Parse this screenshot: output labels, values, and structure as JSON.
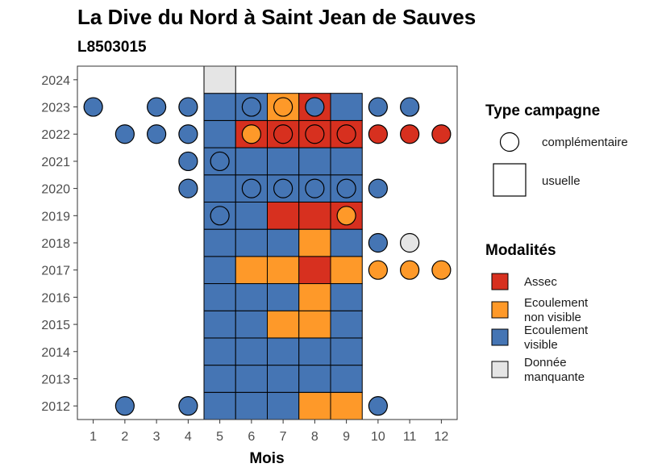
{
  "chart_data": {
    "type": "heatmap",
    "title": "La Dive du Nord à Saint Jean de Sauves",
    "subtitle": "L8503015",
    "xlabel": "Mois",
    "ylabel": "",
    "x_ticks": [
      "1",
      "2",
      "3",
      "4",
      "5",
      "6",
      "7",
      "8",
      "9",
      "10",
      "11",
      "12"
    ],
    "y_ticks": [
      "2012",
      "2013",
      "2014",
      "2015",
      "2016",
      "2017",
      "2018",
      "2019",
      "2020",
      "2021",
      "2022",
      "2023",
      "2024"
    ],
    "xlim": [
      0.5,
      12.5
    ],
    "ylim": [
      2011.5,
      2024.5
    ],
    "grid": false,
    "colors": {
      "Assec": "#d7301f",
      "Ecoulement non visible": "#fe9929",
      "Ecoulement visible": "#4575b4",
      "Donnée manquante": "#e5e5e5"
    },
    "legend": {
      "position": "right",
      "shape_title": "Type campagne",
      "shape_items": [
        {
          "label": "complémentaire",
          "shape": "circle"
        },
        {
          "label": "usuelle",
          "shape": "square"
        }
      ],
      "color_title": "Modalités",
      "color_items": [
        {
          "key": "Assec",
          "lines": [
            "Assec"
          ]
        },
        {
          "key": "Ecoulement non visible",
          "lines": [
            "Ecoulement",
            "non visible"
          ]
        },
        {
          "key": "Ecoulement visible",
          "lines": [
            "Ecoulement",
            "visible"
          ]
        },
        {
          "key": "Donnée manquante",
          "lines": [
            "Donnée",
            "manquante"
          ]
        }
      ]
    },
    "usuelle": [
      {
        "year": 2012,
        "months": [
          "Ecoulement visible",
          "Ecoulement visible",
          "Ecoulement visible",
          "Ecoulement non visible",
          "Ecoulement non visible"
        ]
      },
      {
        "year": 2013,
        "months": [
          "Ecoulement visible",
          "Ecoulement visible",
          "Ecoulement visible",
          "Ecoulement visible",
          "Ecoulement visible"
        ]
      },
      {
        "year": 2014,
        "months": [
          "Ecoulement visible",
          "Ecoulement visible",
          "Ecoulement visible",
          "Ecoulement visible",
          "Ecoulement visible"
        ]
      },
      {
        "year": 2015,
        "months": [
          "Ecoulement visible",
          "Ecoulement visible",
          "Ecoulement non visible",
          "Ecoulement non visible",
          "Ecoulement visible"
        ]
      },
      {
        "year": 2016,
        "months": [
          "Ecoulement visible",
          "Ecoulement visible",
          "Ecoulement visible",
          "Ecoulement non visible",
          "Ecoulement visible"
        ]
      },
      {
        "year": 2017,
        "months": [
          "Ecoulement visible",
          "Ecoulement non visible",
          "Ecoulement non visible",
          "Assec",
          "Ecoulement non visible"
        ]
      },
      {
        "year": 2018,
        "months": [
          "Ecoulement visible",
          "Ecoulement visible",
          "Ecoulement visible",
          "Ecoulement non visible",
          "Ecoulement visible"
        ]
      },
      {
        "year": 2019,
        "months": [
          "Ecoulement visible",
          "Ecoulement visible",
          "Assec",
          "Assec",
          "Assec"
        ]
      },
      {
        "year": 2020,
        "months": [
          "Ecoulement visible",
          "Ecoulement visible",
          "Ecoulement visible",
          "Ecoulement visible",
          "Ecoulement visible"
        ]
      },
      {
        "year": 2021,
        "months": [
          "Ecoulement visible",
          "Ecoulement visible",
          "Ecoulement visible",
          "Ecoulement visible",
          "Ecoulement visible"
        ]
      },
      {
        "year": 2022,
        "months": [
          "Ecoulement visible",
          "Assec",
          "Assec",
          "Assec",
          "Assec"
        ]
      },
      {
        "year": 2023,
        "months": [
          "Ecoulement visible",
          "Ecoulement visible",
          "Ecoulement non visible",
          "Assec",
          "Ecoulement visible"
        ]
      },
      {
        "year": 2024,
        "months": [
          "Donnée manquante"
        ]
      }
    ],
    "usuelle_first_month": 5,
    "complementaire": [
      {
        "year": 2012,
        "month": 2,
        "value": "Ecoulement visible"
      },
      {
        "year": 2012,
        "month": 4,
        "value": "Ecoulement visible"
      },
      {
        "year": 2012,
        "month": 10,
        "value": "Ecoulement visible"
      },
      {
        "year": 2017,
        "month": 10,
        "value": "Ecoulement non visible"
      },
      {
        "year": 2017,
        "month": 11,
        "value": "Ecoulement non visible"
      },
      {
        "year": 2017,
        "month": 12,
        "value": "Ecoulement non visible"
      },
      {
        "year": 2018,
        "month": 10,
        "value": "Ecoulement visible"
      },
      {
        "year": 2018,
        "month": 11,
        "value": "Donnée manquante"
      },
      {
        "year": 2019,
        "month": 5,
        "value": "Ecoulement visible"
      },
      {
        "year": 2019,
        "month": 9,
        "value": "Ecoulement non visible"
      },
      {
        "year": 2020,
        "month": 4,
        "value": "Ecoulement visible"
      },
      {
        "year": 2020,
        "month": 6,
        "value": "Ecoulement visible"
      },
      {
        "year": 2020,
        "month": 7,
        "value": "Ecoulement visible"
      },
      {
        "year": 2020,
        "month": 8,
        "value": "Ecoulement visible"
      },
      {
        "year": 2020,
        "month": 9,
        "value": "Ecoulement visible"
      },
      {
        "year": 2020,
        "month": 10,
        "value": "Ecoulement visible"
      },
      {
        "year": 2021,
        "month": 4,
        "value": "Ecoulement visible"
      },
      {
        "year": 2021,
        "month": 5,
        "value": "Ecoulement visible"
      },
      {
        "year": 2022,
        "month": 2,
        "value": "Ecoulement visible"
      },
      {
        "year": 2022,
        "month": 3,
        "value": "Ecoulement visible"
      },
      {
        "year": 2022,
        "month": 4,
        "value": "Ecoulement visible"
      },
      {
        "year": 2022,
        "month": 6,
        "value": "Ecoulement non visible"
      },
      {
        "year": 2022,
        "month": 7,
        "value": "Assec"
      },
      {
        "year": 2022,
        "month": 8,
        "value": "Assec"
      },
      {
        "year": 2022,
        "month": 9,
        "value": "Assec"
      },
      {
        "year": 2022,
        "month": 10,
        "value": "Assec"
      },
      {
        "year": 2022,
        "month": 11,
        "value": "Assec"
      },
      {
        "year": 2022,
        "month": 12,
        "value": "Assec"
      },
      {
        "year": 2023,
        "month": 1,
        "value": "Ecoulement visible"
      },
      {
        "year": 2023,
        "month": 3,
        "value": "Ecoulement visible"
      },
      {
        "year": 2023,
        "month": 4,
        "value": "Ecoulement visible"
      },
      {
        "year": 2023,
        "month": 6,
        "value": "Ecoulement visible"
      },
      {
        "year": 2023,
        "month": 7,
        "value": "Ecoulement non visible"
      },
      {
        "year": 2023,
        "month": 8,
        "value": "Ecoulement visible"
      },
      {
        "year": 2023,
        "month": 10,
        "value": "Ecoulement visible"
      },
      {
        "year": 2023,
        "month": 11,
        "value": "Ecoulement visible"
      }
    ]
  }
}
